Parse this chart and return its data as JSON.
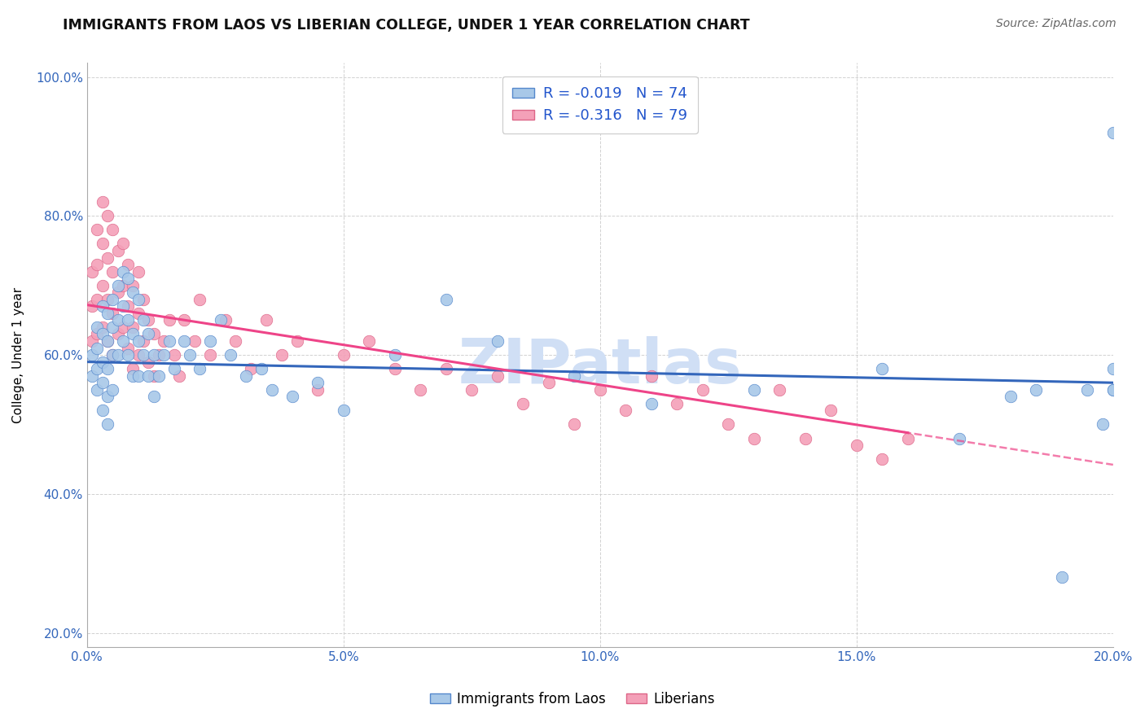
{
  "title": "IMMIGRANTS FROM LAOS VS LIBERIAN COLLEGE, UNDER 1 YEAR CORRELATION CHART",
  "source": "Source: ZipAtlas.com",
  "ylabel": "College, Under 1 year",
  "xlim": [
    0.0,
    0.2
  ],
  "ylim": [
    0.18,
    1.02
  ],
  "xticks": [
    0.0,
    0.05,
    0.1,
    0.15,
    0.2
  ],
  "xtick_labels": [
    "0.0%",
    "5.0%",
    "10.0%",
    "15.0%",
    "20.0%"
  ],
  "yticks": [
    0.2,
    0.4,
    0.6,
    0.8,
    1.0
  ],
  "ytick_labels": [
    "20.0%",
    "40.0%",
    "60.0%",
    "80.0%",
    "100.0%"
  ],
  "legend1_label": "R = -0.019   N = 74",
  "legend2_label": "R = -0.316   N = 79",
  "bottom_legend1": "Immigrants from Laos",
  "bottom_legend2": "Liberians",
  "color_blue": "#A8C8E8",
  "color_pink": "#F4A0B8",
  "trend_blue": "#3366BB",
  "trend_pink": "#EE4488",
  "watermark": "ZIPatlas",
  "watermark_color": "#D0DFF5",
  "blue_x": [
    0.001,
    0.001,
    0.002,
    0.002,
    0.002,
    0.002,
    0.003,
    0.003,
    0.003,
    0.003,
    0.003,
    0.004,
    0.004,
    0.004,
    0.004,
    0.004,
    0.005,
    0.005,
    0.005,
    0.005,
    0.006,
    0.006,
    0.006,
    0.007,
    0.007,
    0.007,
    0.008,
    0.008,
    0.008,
    0.009,
    0.009,
    0.009,
    0.01,
    0.01,
    0.01,
    0.011,
    0.011,
    0.012,
    0.012,
    0.013,
    0.013,
    0.014,
    0.015,
    0.016,
    0.017,
    0.019,
    0.02,
    0.022,
    0.024,
    0.026,
    0.028,
    0.031,
    0.034,
    0.036,
    0.04,
    0.045,
    0.05,
    0.06,
    0.07,
    0.08,
    0.095,
    0.11,
    0.13,
    0.155,
    0.17,
    0.18,
    0.185,
    0.19,
    0.195,
    0.198,
    0.2,
    0.2,
    0.2,
    0.2
  ],
  "blue_y": [
    0.6,
    0.57,
    0.64,
    0.61,
    0.58,
    0.55,
    0.67,
    0.63,
    0.59,
    0.56,
    0.52,
    0.66,
    0.62,
    0.58,
    0.54,
    0.5,
    0.68,
    0.64,
    0.6,
    0.55,
    0.7,
    0.65,
    0.6,
    0.72,
    0.67,
    0.62,
    0.71,
    0.65,
    0.6,
    0.69,
    0.63,
    0.57,
    0.68,
    0.62,
    0.57,
    0.65,
    0.6,
    0.63,
    0.57,
    0.6,
    0.54,
    0.57,
    0.6,
    0.62,
    0.58,
    0.62,
    0.6,
    0.58,
    0.62,
    0.65,
    0.6,
    0.57,
    0.58,
    0.55,
    0.54,
    0.56,
    0.52,
    0.6,
    0.68,
    0.62,
    0.57,
    0.53,
    0.55,
    0.58,
    0.48,
    0.54,
    0.55,
    0.28,
    0.55,
    0.5,
    0.55,
    0.58,
    0.55,
    0.92
  ],
  "pink_x": [
    0.001,
    0.001,
    0.001,
    0.002,
    0.002,
    0.002,
    0.002,
    0.003,
    0.003,
    0.003,
    0.003,
    0.004,
    0.004,
    0.004,
    0.004,
    0.005,
    0.005,
    0.005,
    0.005,
    0.006,
    0.006,
    0.006,
    0.007,
    0.007,
    0.007,
    0.008,
    0.008,
    0.008,
    0.009,
    0.009,
    0.009,
    0.01,
    0.01,
    0.01,
    0.011,
    0.011,
    0.012,
    0.012,
    0.013,
    0.013,
    0.014,
    0.015,
    0.016,
    0.017,
    0.018,
    0.019,
    0.021,
    0.022,
    0.024,
    0.027,
    0.029,
    0.032,
    0.035,
    0.038,
    0.041,
    0.045,
    0.05,
    0.055,
    0.06,
    0.065,
    0.07,
    0.075,
    0.08,
    0.085,
    0.09,
    0.095,
    0.1,
    0.105,
    0.11,
    0.115,
    0.12,
    0.125,
    0.13,
    0.135,
    0.14,
    0.145,
    0.15,
    0.155,
    0.16
  ],
  "pink_y": [
    0.72,
    0.67,
    0.62,
    0.78,
    0.73,
    0.68,
    0.63,
    0.82,
    0.76,
    0.7,
    0.64,
    0.8,
    0.74,
    0.68,
    0.62,
    0.78,
    0.72,
    0.66,
    0.6,
    0.75,
    0.69,
    0.63,
    0.76,
    0.7,
    0.64,
    0.73,
    0.67,
    0.61,
    0.7,
    0.64,
    0.58,
    0.72,
    0.66,
    0.6,
    0.68,
    0.62,
    0.65,
    0.59,
    0.63,
    0.57,
    0.6,
    0.62,
    0.65,
    0.6,
    0.57,
    0.65,
    0.62,
    0.68,
    0.6,
    0.65,
    0.62,
    0.58,
    0.65,
    0.6,
    0.62,
    0.55,
    0.6,
    0.62,
    0.58,
    0.55,
    0.58,
    0.55,
    0.57,
    0.53,
    0.56,
    0.5,
    0.55,
    0.52,
    0.57,
    0.53,
    0.55,
    0.5,
    0.48,
    0.55,
    0.48,
    0.52,
    0.47,
    0.45,
    0.48
  ]
}
